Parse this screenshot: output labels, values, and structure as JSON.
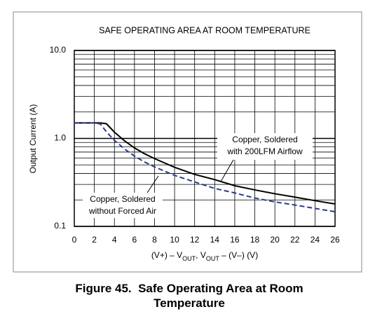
{
  "chart_data": {
    "type": "line",
    "title": "SAFE OPERATING AREA AT ROOM TEMPERATURE",
    "y_label": "Output Current (A)",
    "x_label": [
      "(V+) – V",
      "OUT",
      ", V",
      "OUT",
      " – (V–) (V)"
    ],
    "x": [
      0,
      2,
      2.6,
      3.2,
      4,
      5,
      6,
      7,
      8,
      10,
      12,
      14,
      16,
      18,
      20,
      22,
      24,
      26
    ],
    "series": [
      {
        "color": "#000000",
        "style": "solid",
        "values": [
          1.5,
          1.5,
          1.5,
          1.47,
          1.18,
          0.94,
          0.78,
          0.67,
          0.59,
          0.47,
          0.39,
          0.34,
          0.29,
          0.26,
          0.235,
          0.215,
          0.196,
          0.18
        ]
      },
      {
        "color": "#2b3a8f",
        "style": "dashed",
        "values": [
          1.5,
          1.5,
          1.46,
          1.19,
          0.95,
          0.76,
          0.63,
          0.54,
          0.475,
          0.38,
          0.32,
          0.27,
          0.24,
          0.21,
          0.19,
          0.175,
          0.16,
          0.147
        ]
      }
    ],
    "annotations": [
      {
        "lines": [
          "Copper, Soldered",
          "with 200LFM Airflow"
        ]
      },
      {
        "lines": [
          "Copper, Soldered",
          "without Forced Air"
        ]
      }
    ],
    "xlim": [
      0,
      26
    ],
    "xticks": [
      0,
      2,
      4,
      6,
      8,
      10,
      12,
      14,
      16,
      18,
      20,
      22,
      24,
      26
    ],
    "ylim": [
      0.1,
      10
    ],
    "log_y": true,
    "yticks": [
      {
        "value": 0.1,
        "label": "0.1"
      },
      {
        "value": 1,
        "label": "1.0"
      },
      {
        "value": 10,
        "label": "10.0"
      }
    ],
    "y_minor_grid": [
      0.2,
      0.3,
      0.4,
      0.5,
      0.6,
      0.7,
      0.8,
      0.9,
      2,
      3,
      4,
      5,
      6,
      7,
      8,
      9
    ],
    "grid": true
  },
  "caption": "Figure 45.  Safe Operating Area at Room Temperature"
}
